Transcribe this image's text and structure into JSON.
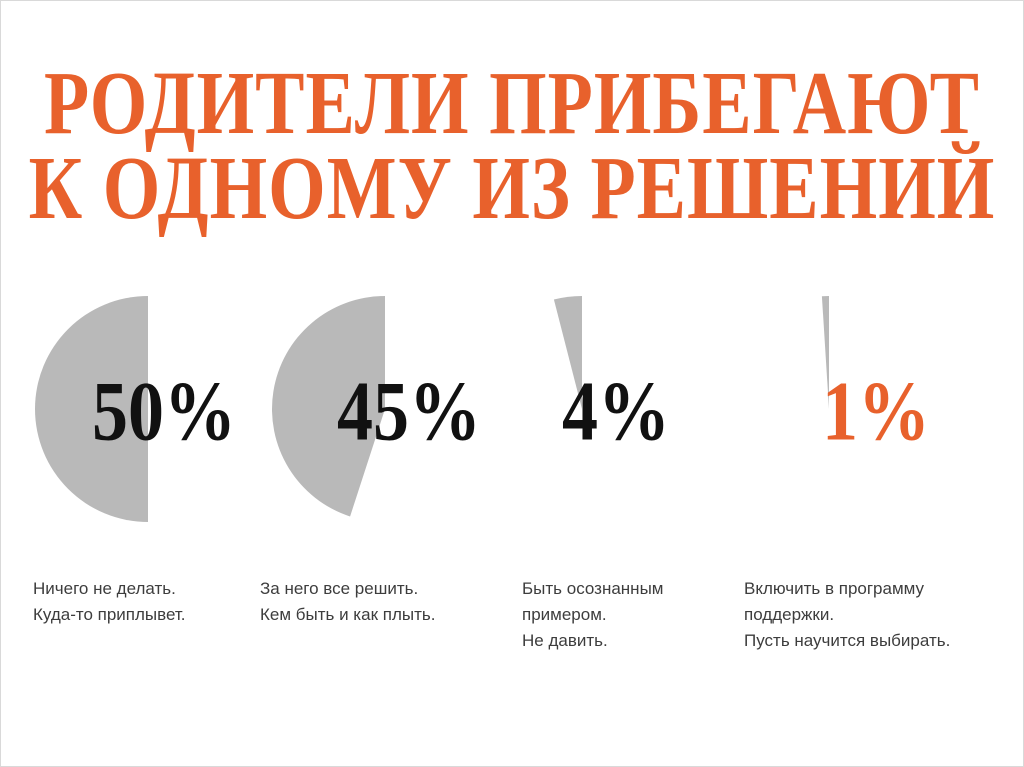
{
  "title_lines": [
    "РОДИТЕЛИ ПРИБЕГАЮТ",
    "К ОДНОМУ ИЗ РЕШЕНИЙ"
  ],
  "colors": {
    "accent": "#e8612c",
    "slice": "#b9b9b9",
    "text": "#3d3d3d",
    "value": "#111111"
  },
  "chart_data": {
    "type": "pie",
    "title": "РОДИТЕЛИ ПРИБЕГАЮТ К ОДНОМУ ИЗ РЕШЕНИЙ",
    "items": [
      {
        "value": 50,
        "label": "50%",
        "highlight": false,
        "description": [
          "Ничего не делать.",
          "Куда-то приплывет."
        ]
      },
      {
        "value": 45,
        "label": "45%",
        "highlight": false,
        "description": [
          "За него все решить.",
          "Кем быть и как плыть."
        ]
      },
      {
        "value": 4,
        "label": "4%",
        "highlight": false,
        "description": [
          "Быть осознанным",
          "примером.",
          "Не давить."
        ]
      },
      {
        "value": 1,
        "label": "1%",
        "highlight": true,
        "description": [
          "Включить в программу",
          "поддержки.",
          "Пусть научится выбирать."
        ]
      }
    ]
  }
}
